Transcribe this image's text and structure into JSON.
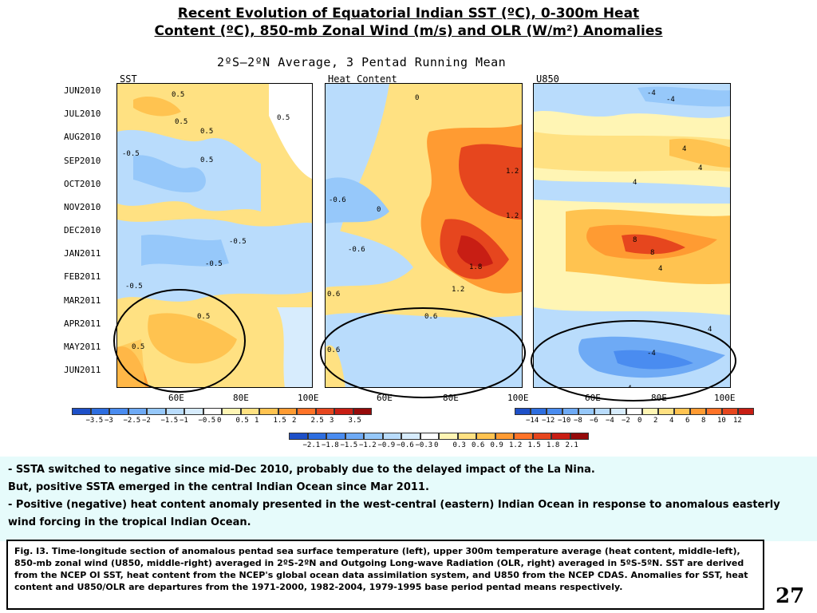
{
  "header": {
    "title_line1": "Recent Evolution of Equatorial Indian SST (ºC), 0-300m Heat",
    "title_line2": "Content (ºC), 850-mb Zonal Wind (m/s) and OLR (W/m²) Anomalies"
  },
  "chart_data": [
    {
      "type": "heatmap",
      "panel_label": "SST",
      "subtitle": "2ºS—2ºN Average, 3 Pentad Running Mean",
      "y_ticks": [
        "JUN2010",
        "JUL2010",
        "AUG2010",
        "SEP2010",
        "OCT2010",
        "NOV2010",
        "DEC2010",
        "JAN2011",
        "FEB2011",
        "MAR2011",
        "APR2011",
        "MAY2011",
        "JUN2011"
      ],
      "x_ticks": [
        "60E",
        "80E",
        "100E"
      ],
      "contour_labels": [
        "0.5",
        "0.5",
        "0.5",
        "0.5",
        "0.5",
        "-0.5",
        "-0.5",
        "-0.5",
        "-0.5",
        "0.5",
        "0.5"
      ],
      "colorbar": {
        "labels": [
          "−3.5",
          "−3",
          "−2.5",
          "−2",
          "−1.5",
          "−1",
          "−0.5",
          "0",
          "0.5",
          "1",
          "1.5",
          "2",
          "2.5",
          "3",
          "3.5"
        ],
        "colors": [
          "#1e50c8",
          "#2d6ee0",
          "#4a8cf0",
          "#6eaaf5",
          "#96c8fa",
          "#b9dcfc",
          "#d7ecfd",
          "#ffffff",
          "#fff5b4",
          "#ffe182",
          "#ffc350",
          "#ff9b32",
          "#ff7328",
          "#e6461e",
          "#c81e14",
          "#960a0a"
        ]
      }
    },
    {
      "type": "heatmap",
      "panel_label": "Heat Content",
      "x_ticks": [
        "60E",
        "80E",
        "100E"
      ],
      "contour_labels": [
        "0",
        "0",
        "1.2",
        "1.2",
        "-0.6",
        "-0.6",
        "1.8",
        "1.2",
        "0.6",
        "0.6",
        "0.6"
      ],
      "colorbar": {
        "labels": [
          "−2.1",
          "−1.8",
          "−1.5",
          "−1.2",
          "−0.9",
          "−0.6",
          "−0.3",
          "0",
          "0.3",
          "0.6",
          "0.9",
          "1.2",
          "1.5",
          "1.8",
          "2.1"
        ],
        "colors": [
          "#1e50c8",
          "#2d6ee0",
          "#4a8cf0",
          "#6eaaf5",
          "#96c8fa",
          "#b9dcfc",
          "#d7ecfd",
          "#ffffff",
          "#fff5b4",
          "#ffe182",
          "#ffc350",
          "#ff9b32",
          "#ff7328",
          "#e6461e",
          "#c81e14",
          "#960a0a"
        ]
      }
    },
    {
      "type": "heatmap",
      "panel_label": "U850",
      "x_ticks": [
        "60E",
        "80E",
        "100E"
      ],
      "contour_labels": [
        "-4",
        "-4",
        "4",
        "4",
        "4",
        "8",
        "8",
        "4",
        "4",
        "-4",
        "-4"
      ],
      "colorbar": {
        "labels": [
          "−14",
          "−12",
          "−10",
          "−8",
          "−6",
          "−4",
          "−2",
          "0",
          "2",
          "4",
          "6",
          "8",
          "10",
          "12"
        ],
        "colors": [
          "#1e50c8",
          "#2d6ee0",
          "#4a8cf0",
          "#6eaaf5",
          "#96c8fa",
          "#b9dcfc",
          "#d7ecfd",
          "#ffffff",
          "#fff5b4",
          "#ffe182",
          "#ffc350",
          "#ff9b32",
          "#ff7328",
          "#e6461e",
          "#c81e14"
        ]
      }
    }
  ],
  "notes": {
    "line1": "- SSTA switched to negative since mid-Dec 2010, probably due to the delayed impact of the La Nina.",
    "line2": "But, positive SSTA emerged in the central Indian Ocean since Mar 2011.",
    "line3": "- Positive (negative) heat content anomaly presented in the west-central (eastern) Indian Ocean in response to anomalous easterly wind  forcing in the tropical Indian Ocean."
  },
  "caption": "Fig. I3. Time-longitude section of anomalous pentad sea surface temperature (left), upper 300m temperature average (heat content, middle-left), 850-mb zonal wind (U850, middle-right) averaged in 2ºS-2ºN and Outgoing Long-wave Radiation (OLR, right) averaged in 5ºS-5ºN. SST are derived from the NCEP OI SST, heat content from the NCEP's global ocean data assimilation system, and U850 from the NCEP CDAS.  Anomalies for SST, heat content and U850/OLR are departures from the 1971-2000, 1982-2004, 1979-1995 base period pentad means respectively.",
  "page_number": "27"
}
